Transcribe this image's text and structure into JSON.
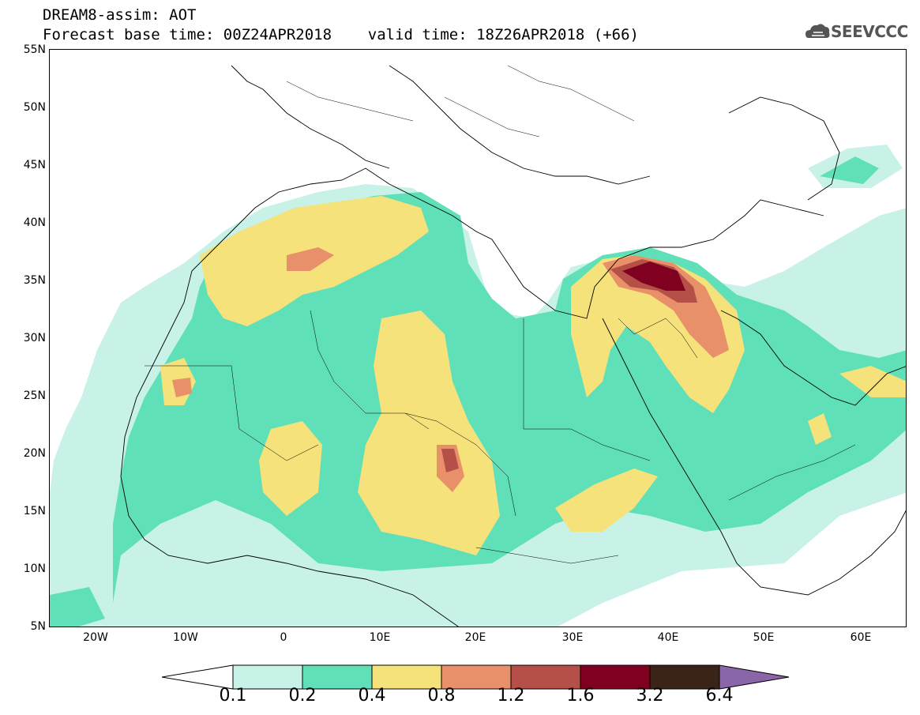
{
  "title": {
    "line1": "DREAM8-assim: AOT",
    "line2": "Forecast base time: 00Z24APR2018    valid time: 18Z26APR2018 (+66)"
  },
  "logo": {
    "text": "SEEVCCC",
    "icon": "cloud-logo-icon"
  },
  "map": {
    "latitudes": [
      "55N",
      "50N",
      "45N",
      "40N",
      "35N",
      "30N",
      "25N",
      "20N",
      "15N",
      "10N",
      "5N"
    ],
    "longitudes": [
      "20W",
      "10W",
      "0",
      "10E",
      "20E",
      "30E",
      "40E",
      "50E",
      "60E"
    ],
    "lat_range": [
      5,
      55
    ],
    "lon_range": [
      -25,
      65
    ]
  },
  "colorbar": {
    "labels": [
      "0.1",
      "0.2",
      "0.4",
      "0.8",
      "1.2",
      "1.6",
      "3.2",
      "6.4"
    ],
    "colors": [
      "#c8f2e8",
      "#5fe0b8",
      "#f5e27a",
      "#e8906a",
      "#b45048",
      "#800020",
      "#3a2418",
      "#8a66a8"
    ],
    "under_color": "#ffffff"
  }
}
